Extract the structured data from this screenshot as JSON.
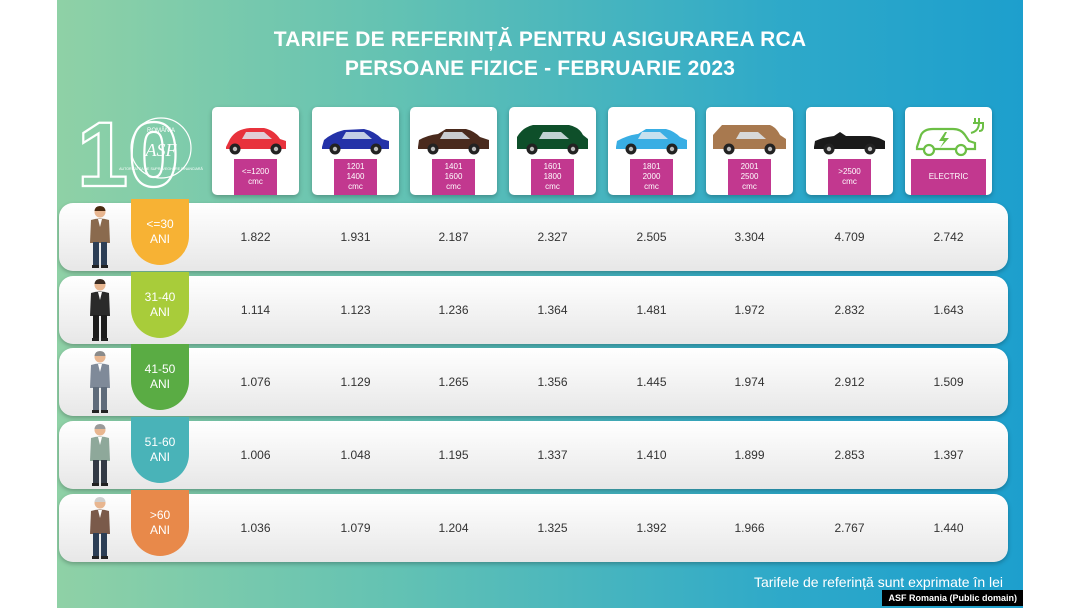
{
  "header": {
    "title_line1": "TARIFE DE REFERINȚĂ PENTRU ASIGURAREA RCA",
    "title_line2": "PERSOANE FIZICE - FEBRUARIE 2023"
  },
  "logo": {
    "number": "10",
    "country": "ROMÂNIA",
    "acronym": "ASF",
    "ring_text": "AUTORITATEA DE SUPRAVEGHERE FINANCIARĂ"
  },
  "chart_data": {
    "type": "table",
    "categories": [
      "<=1200\ncmc",
      "1201\n1400\ncmc",
      "1401\n1600\ncmc",
      "1601\n1800\ncmc",
      "1801\n2000\ncmc",
      "2001\n2500\ncmc",
      ">2500\ncmc",
      "ELECTRIC"
    ],
    "rows": [
      {
        "label_top": "<=30",
        "label_bottom": "ANI",
        "values": [
          "1.822",
          "1.931",
          "2.187",
          "2.327",
          "2.505",
          "3.304",
          "4.709",
          "2.742"
        ]
      },
      {
        "label_top": "31-40",
        "label_bottom": "ANI",
        "values": [
          "1.114",
          "1.123",
          "1.236",
          "1.364",
          "1.481",
          "1.972",
          "2.832",
          "1.643"
        ]
      },
      {
        "label_top": "41-50",
        "label_bottom": "ANI",
        "values": [
          "1.076",
          "1.129",
          "1.265",
          "1.356",
          "1.445",
          "1.974",
          "2.912",
          "1.509"
        ]
      },
      {
        "label_top": "51-60",
        "label_bottom": "ANI",
        "values": [
          "1.006",
          "1.048",
          "1.195",
          "1.337",
          "1.410",
          "1.899",
          "2.853",
          "1.397"
        ]
      },
      {
        "label_top": ">60",
        "label_bottom": "ANI",
        "values": [
          "1.036",
          "1.079",
          "1.204",
          "1.325",
          "1.392",
          "1.966",
          "2.767",
          "1.440"
        ]
      }
    ],
    "unit_note": "Tarifele de referință sunt exprimate în lei"
  },
  "colors": {
    "car_colors": [
      "#e8323c",
      "#2432a8",
      "#4a2a1d",
      "#0e4f2a",
      "#39aee4",
      "#a8794f",
      "#1a1a1a",
      "#6cbf45"
    ],
    "age_tab_colors": [
      "#f7b234",
      "#a8cc3a",
      "#5aac44",
      "#49b3b8",
      "#e8894a"
    ],
    "tag_color": "#c2388f"
  },
  "credit": "ASF Romania (Public domain)"
}
